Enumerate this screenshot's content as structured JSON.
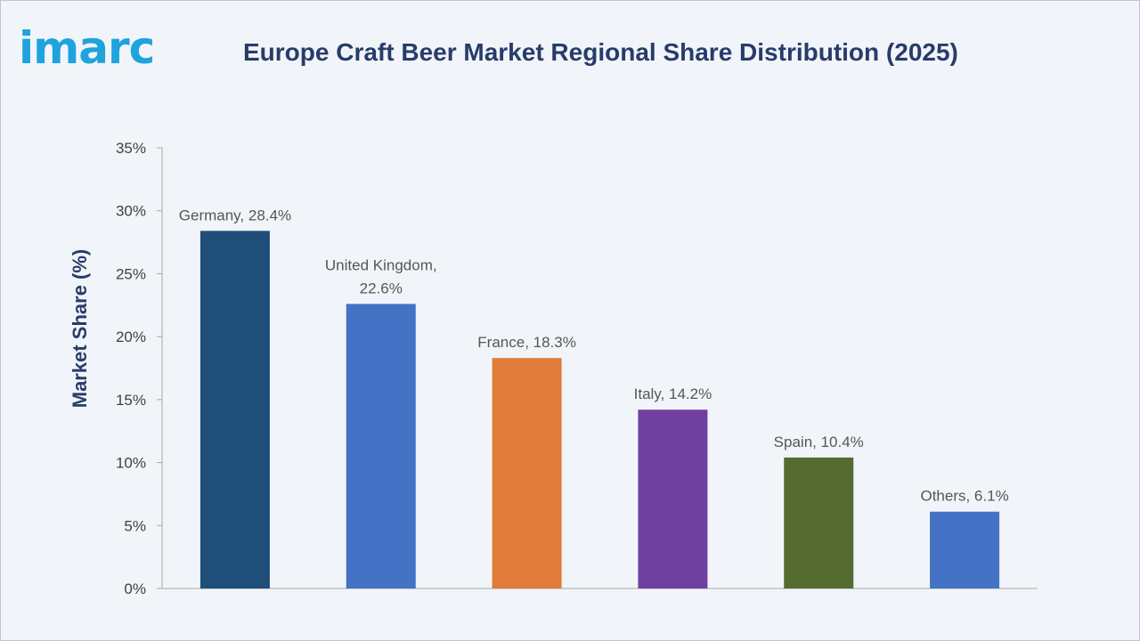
{
  "brand": {
    "logo_text": "imarc",
    "logo_color": "#1fa3dc"
  },
  "chart_data": {
    "type": "bar",
    "title": "Europe Craft Beer Market Regional Share Distribution (2025)",
    "xlabel": "",
    "ylabel": "Market Share (%)",
    "ylim": [
      0,
      35
    ],
    "yticks": [
      0,
      5,
      10,
      15,
      20,
      25,
      30,
      35
    ],
    "ytick_suffix": "%",
    "grid": false,
    "legend": "none",
    "categories": [
      "Germany",
      "United Kingdom",
      "France",
      "Italy",
      "Spain",
      "Others"
    ],
    "values": [
      28.4,
      22.6,
      18.3,
      14.2,
      10.4,
      6.1
    ],
    "data_labels": [
      [
        "Germany, 28.4%"
      ],
      [
        "United Kingdom,",
        "22.6%"
      ],
      [
        "France, 18.3%"
      ],
      [
        "Italy, 14.2%"
      ],
      [
        "Spain, 10.4%"
      ],
      [
        "Others, 6.1%"
      ]
    ],
    "colors": [
      "#1f4e79",
      "#4472c4",
      "#e07b39",
      "#7040a0",
      "#556b2f",
      "#4472c4"
    ]
  }
}
